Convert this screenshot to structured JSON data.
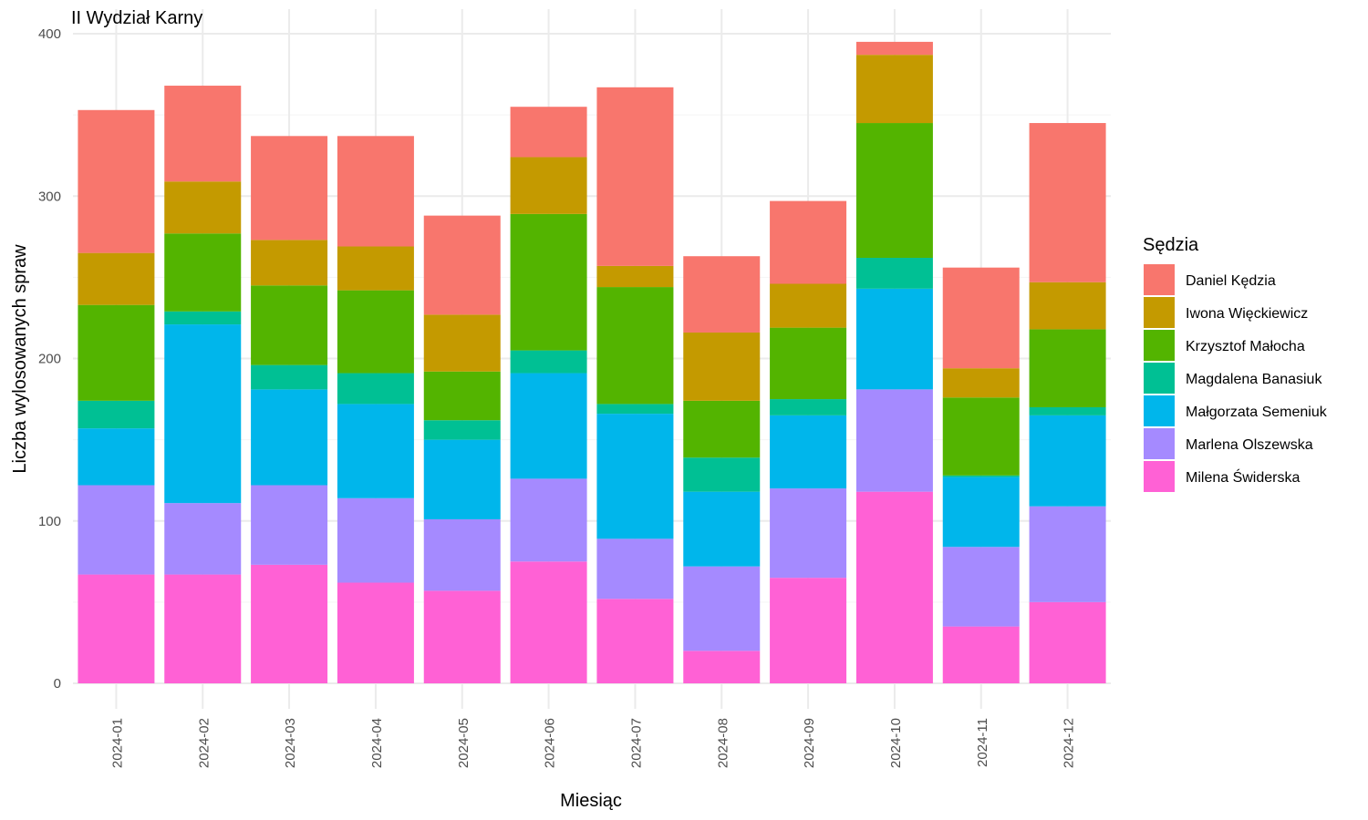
{
  "chart_data": {
    "type": "bar",
    "stacked": true,
    "title": "II Wydział Karny",
    "xlabel": "Miesiąc",
    "ylabel": "Liczba wylosowanych spraw",
    "ylim": [
      0,
      400
    ],
    "yticks": [
      0,
      100,
      200,
      300,
      400
    ],
    "grid": true,
    "legend": {
      "title": "Sędzia",
      "position": "right"
    },
    "categories": [
      "2024-01",
      "2024-02",
      "2024-03",
      "2024-04",
      "2024-05",
      "2024-06",
      "2024-07",
      "2024-08",
      "2024-09",
      "2024-10",
      "2024-11",
      "2024-12"
    ],
    "series": [
      {
        "name": "Milena Świderska",
        "color": "#FF61D5",
        "values": [
          67,
          67,
          73,
          62,
          57,
          75,
          52,
          20,
          65,
          118,
          35,
          50
        ]
      },
      {
        "name": "Marlena Olszewska",
        "color": "#A58AFF",
        "values": [
          55,
          44,
          49,
          52,
          44,
          51,
          37,
          52,
          55,
          63,
          49,
          59
        ]
      },
      {
        "name": "Małgorzata Semeniuk",
        "color": "#00B6EB",
        "values": [
          35,
          110,
          59,
          58,
          49,
          65,
          77,
          46,
          45,
          62,
          43,
          56
        ]
      },
      {
        "name": "Magdalena Banasiuk",
        "color": "#00C094",
        "values": [
          17,
          8,
          15,
          19,
          12,
          14,
          6,
          21,
          10,
          19,
          1,
          5
        ]
      },
      {
        "name": "Krzysztof Małocha",
        "color": "#53B400",
        "values": [
          59,
          48,
          49,
          51,
          30,
          84,
          72,
          35,
          44,
          83,
          48,
          48
        ]
      },
      {
        "name": "Iwona Więckiewicz",
        "color": "#C49A00",
        "values": [
          32,
          32,
          28,
          27,
          35,
          35,
          13,
          42,
          27,
          42,
          18,
          29
        ]
      },
      {
        "name": "Daniel Kędzia",
        "color": "#F8766D",
        "values": [
          88,
          59,
          64,
          68,
          61,
          31,
          110,
          47,
          51,
          8,
          62,
          98
        ]
      }
    ],
    "legend_order": [
      "Daniel Kędzia",
      "Iwona Więckiewicz",
      "Krzysztof Małocha",
      "Magdalena Banasiuk",
      "Małgorzata Semeniuk",
      "Marlena Olszewska",
      "Milena Świderska"
    ]
  }
}
